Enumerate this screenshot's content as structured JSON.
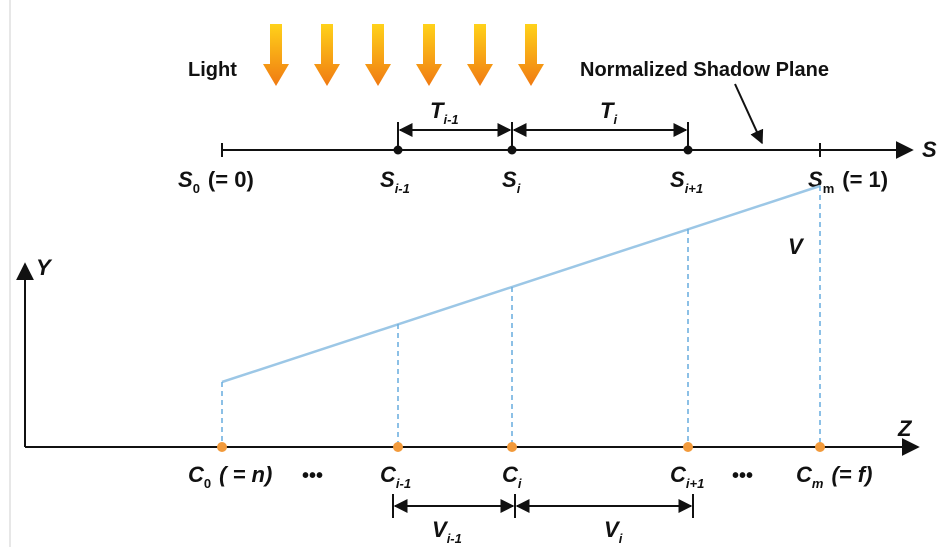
{
  "light_label": "Light",
  "plane_label": "Normalized Shadow Plane",
  "axes": {
    "s": "S",
    "y": "Y",
    "z": "Z"
  },
  "v_label": "V",
  "s_points": [
    {
      "base": "S",
      "sub": "0",
      "extra": "(= 0)"
    },
    {
      "base": "S",
      "sub": "i-1",
      "extra": ""
    },
    {
      "base": "S",
      "sub": "i",
      "extra": ""
    },
    {
      "base": "S",
      "sub": "i+1",
      "extra": ""
    },
    {
      "base": "S",
      "sub": "m",
      "extra": "(= 1)"
    }
  ],
  "t_intervals": [
    {
      "base": "T",
      "sub": "i-1"
    },
    {
      "base": "T",
      "sub": "i"
    }
  ],
  "c_points": [
    {
      "base": "C",
      "sub": "0",
      "extra": "( = n)"
    },
    {
      "base": "C",
      "sub": "i-1",
      "extra": ""
    },
    {
      "base": "C",
      "sub": "i",
      "extra": ""
    },
    {
      "base": "C",
      "sub": "i+1",
      "extra": ""
    },
    {
      "base": "C",
      "sub": "m",
      "extra": "(= f)"
    }
  ],
  "ellipsis": "•••",
  "v_intervals": [
    {
      "base": "V",
      "sub": "i-1"
    },
    {
      "base": "V",
      "sub": "i"
    }
  ],
  "colors": {
    "arrow_top": "#ffd21a",
    "arrow_bottom": "#f07a12",
    "slope_line": "#9cc7e6",
    "dashed": "#6fb1e0",
    "c_point": "#f29a3b",
    "axis": "#111111"
  }
}
